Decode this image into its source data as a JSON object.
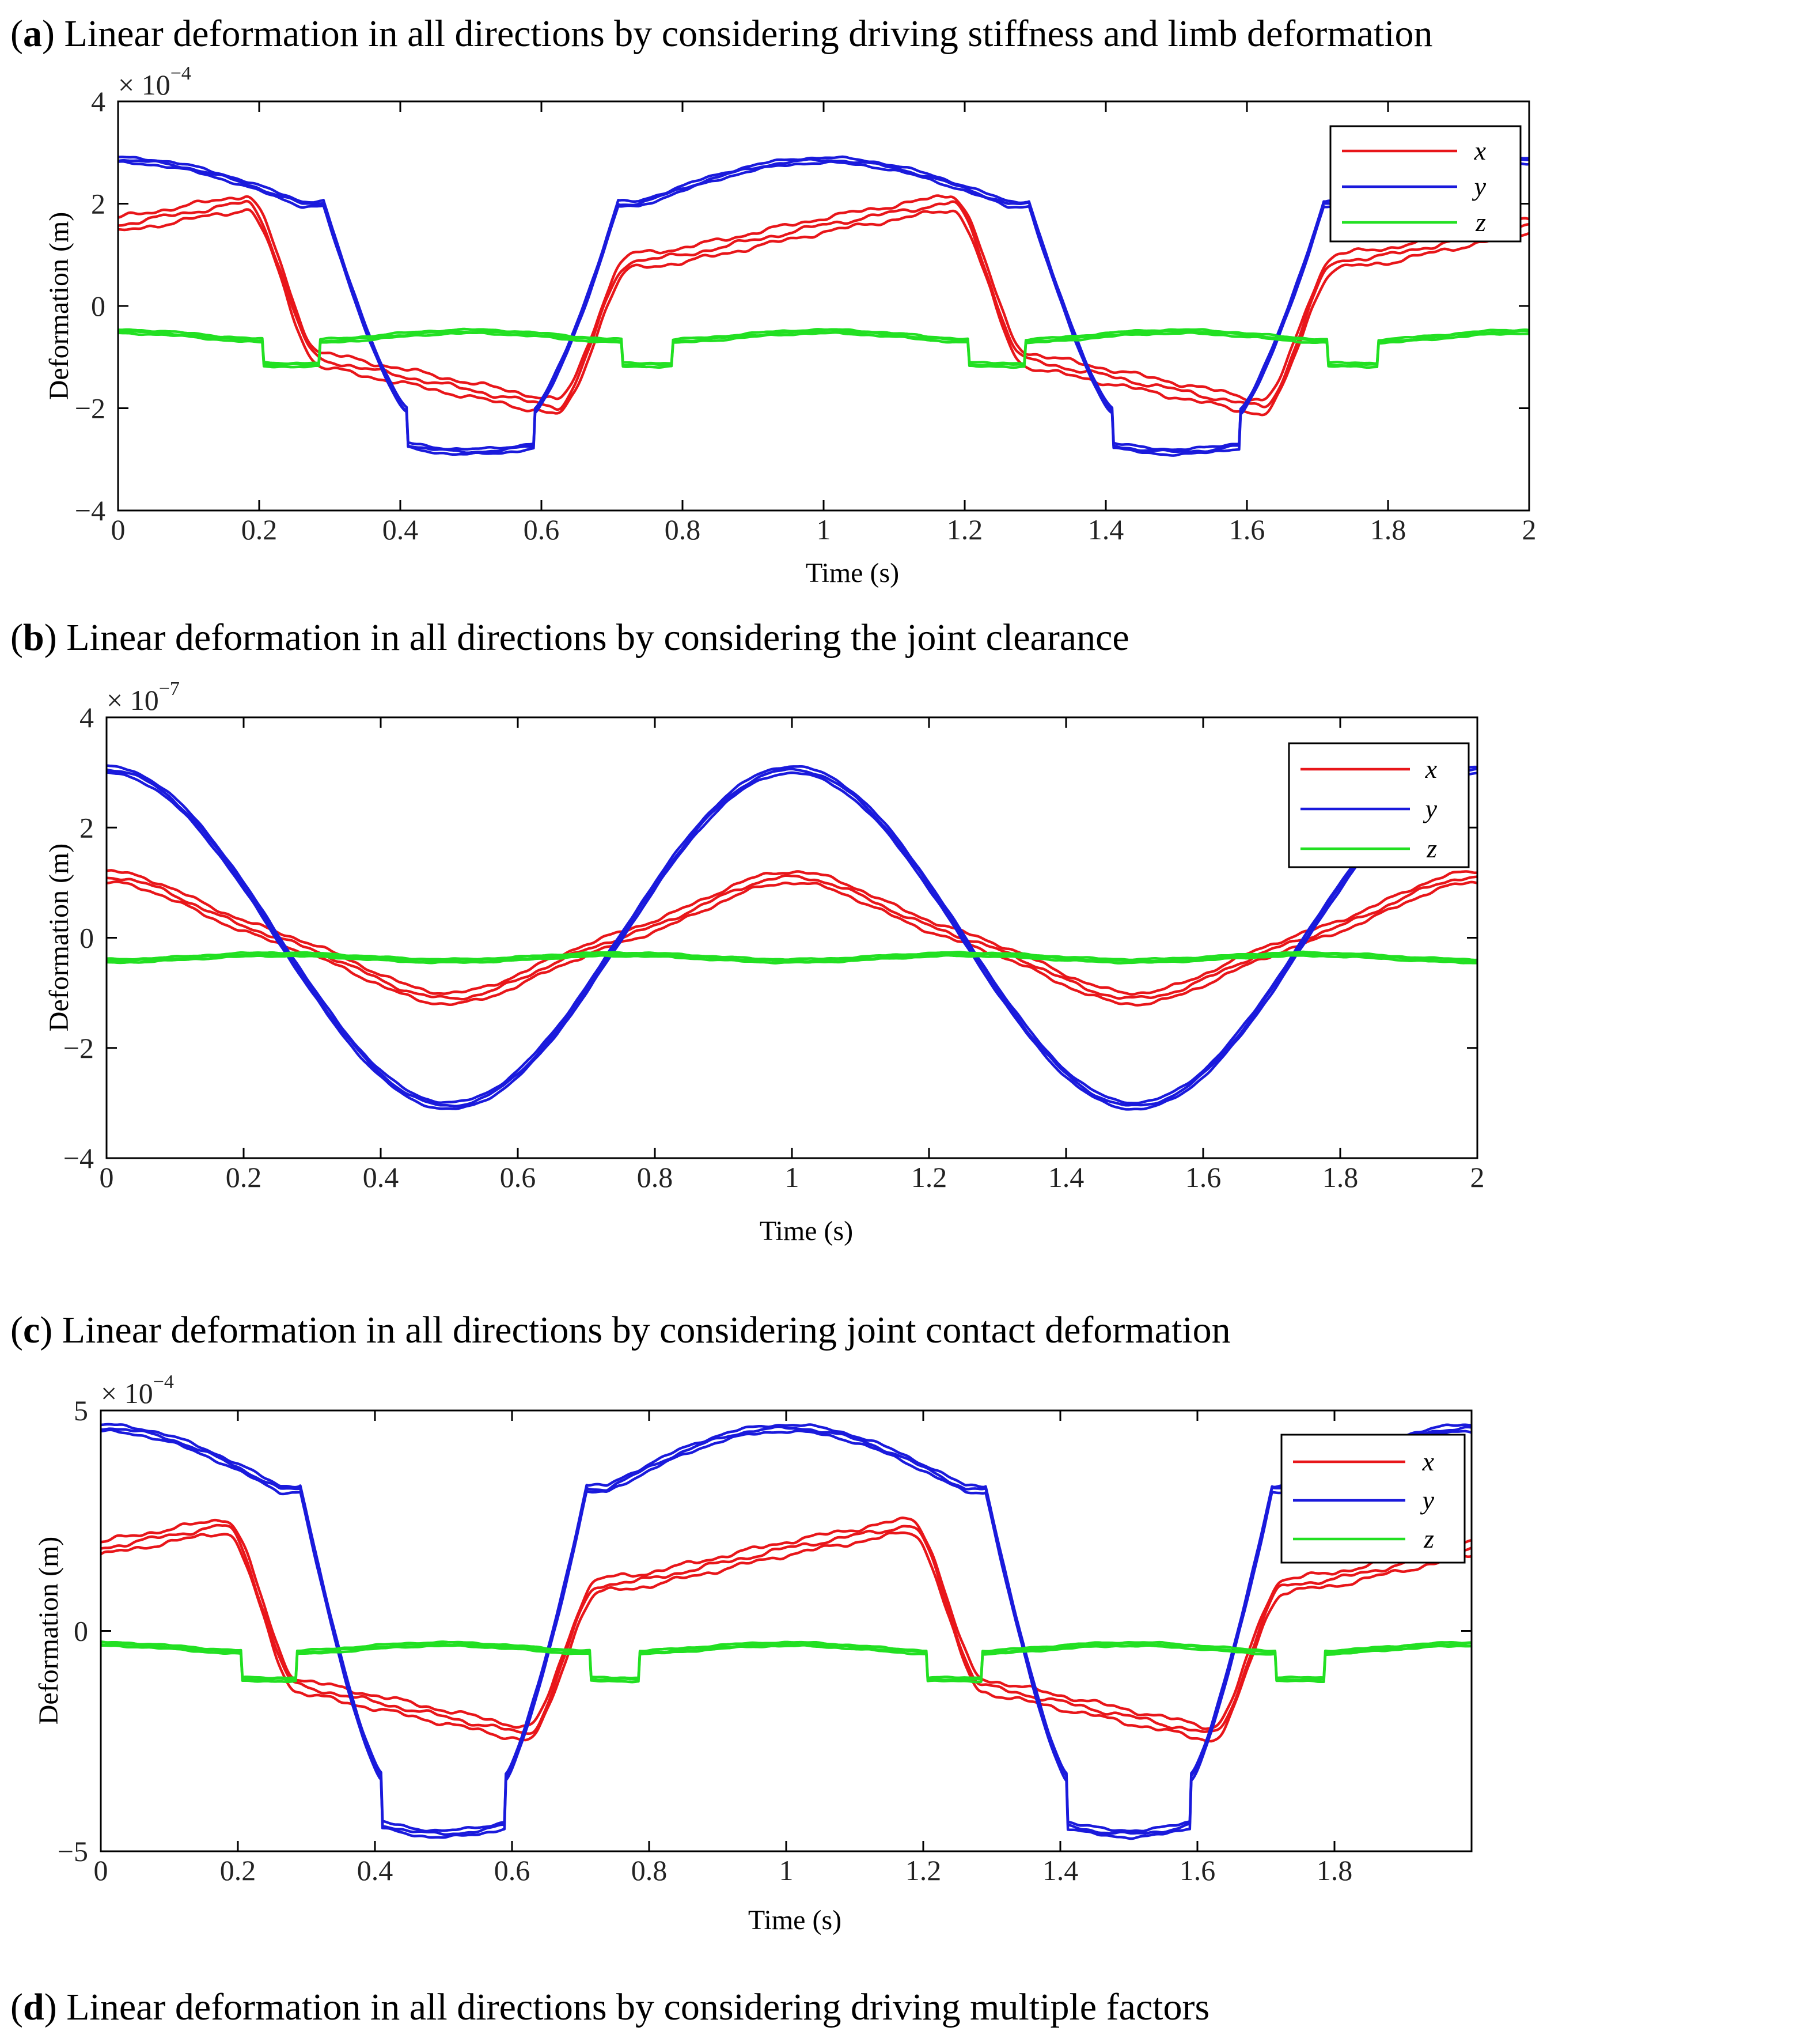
{
  "colors": {
    "x": "#e8161a",
    "y": "#1a1adc",
    "z": "#22e022"
  },
  "chart_data": [
    {
      "type": "line",
      "panel": "a",
      "caption_letter": "a",
      "caption_text": "Linear deformation in all directions by considering driving stiffness and limb deformation",
      "exponent_base": "× 10",
      "exponent_power": "−4",
      "xlabel": "Time (s)",
      "ylabel": "Deformation (m)",
      "xlim": [
        0,
        2
      ],
      "ylim": [
        -4,
        4
      ],
      "xticks": [
        0,
        0.2,
        0.4,
        0.6,
        0.8,
        1,
        1.2,
        1.4,
        1.6,
        1.8,
        2
      ],
      "xtick_labels": [
        "0",
        "0.2",
        "0.4",
        "0.6",
        "0.8",
        "1",
        "1.2",
        "1.4",
        "1.6",
        "1.8",
        "2"
      ],
      "yticks": [
        -4,
        -2,
        0,
        2,
        4
      ],
      "ytick_labels": [
        "−4",
        "−2",
        "0",
        "2",
        "4"
      ],
      "legend": [
        "x",
        "y",
        "z"
      ],
      "style": "stepped",
      "series": [
        {
          "name": "x",
          "amplitude": 2.2,
          "band": 0.28,
          "noise": 0.06
        },
        {
          "name": "y",
          "amplitude": 2.85,
          "band": 0.1,
          "noise": 0.03
        },
        {
          "name": "z",
          "base": -0.5,
          "low": -1.15,
          "band": 0.07,
          "noise": 0.02
        }
      ]
    },
    {
      "type": "line",
      "panel": "b",
      "caption_letter": "b",
      "caption_text": "Linear deformation in all directions by considering the joint clearance",
      "exponent_base": "× 10",
      "exponent_power": "−7",
      "xlabel": "Time (s)",
      "ylabel": "Deformation (m)",
      "xlim": [
        0,
        2
      ],
      "ylim": [
        -4,
        4
      ],
      "xticks": [
        0,
        0.2,
        0.4,
        0.6,
        0.8,
        1,
        1.2,
        1.4,
        1.6,
        1.8,
        2
      ],
      "xtick_labels": [
        "0",
        "0.2",
        "0.4",
        "0.6",
        "0.8",
        "1",
        "1.2",
        "1.4",
        "1.6",
        "1.8",
        "2"
      ],
      "yticks": [
        -4,
        -2,
        0,
        2,
        4
      ],
      "ytick_labels": [
        "−4",
        "−2",
        "0",
        "2",
        "4"
      ],
      "legend": [
        "x",
        "y",
        "z"
      ],
      "style": "smooth",
      "series": [
        {
          "name": "x",
          "amplitude": 1.1,
          "band": 0.2,
          "noise": 0.04
        },
        {
          "name": "y",
          "amplitude": 3.05,
          "band": 0.12,
          "noise": 0.02
        },
        {
          "name": "z",
          "base": -0.3,
          "low": -0.42,
          "band": 0.06,
          "noise": 0.015
        }
      ]
    },
    {
      "type": "line",
      "panel": "c",
      "caption_letter": "c",
      "caption_text": "Linear deformation in all directions by considering joint contact deformation",
      "exponent_base": "× 10",
      "exponent_power": "−4",
      "xlabel": "Time (s)",
      "ylabel": "Deformation (m)",
      "xlim": [
        0,
        2
      ],
      "ylim": [
        -5,
        5
      ],
      "xticks": [
        0,
        0.2,
        0.4,
        0.6,
        0.8,
        1,
        1.2,
        1.4,
        1.6,
        1.8
      ],
      "xtick_labels": [
        "0",
        "0.2",
        "0.4",
        "0.6",
        "0.8",
        "1",
        "1.2",
        "1.4",
        "1.6",
        "1.8"
      ],
      "yticks": [
        -5,
        0,
        5
      ],
      "ytick_labels": [
        "−5",
        "0",
        "5"
      ],
      "legend": [
        "x",
        "y",
        "z"
      ],
      "style": "stepped",
      "series": [
        {
          "name": "x",
          "amplitude": 2.6,
          "band": 0.3,
          "noise": 0.07
        },
        {
          "name": "y",
          "amplitude": 4.6,
          "band": 0.15,
          "noise": 0.04
        },
        {
          "name": "z",
          "base": -0.3,
          "low": -1.1,
          "band": 0.08,
          "noise": 0.02
        }
      ]
    }
  ],
  "panel_d_caption": {
    "letter": "d",
    "text": "Linear deformation in all directions by considering driving multiple factors"
  }
}
